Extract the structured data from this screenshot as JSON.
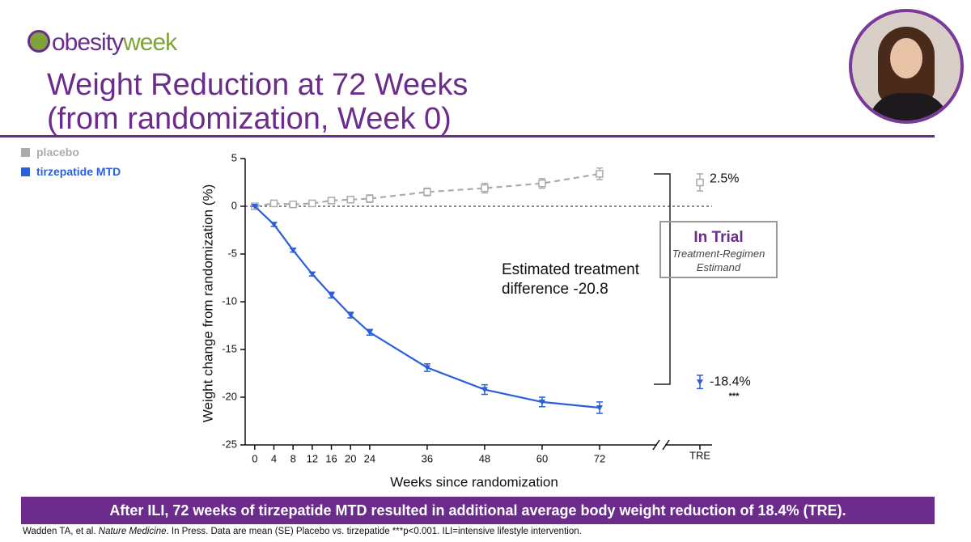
{
  "header": {
    "logo": [
      "obesity",
      "week"
    ],
    "title": [
      "Weight Reduction at 72 Weeks",
      "(from randomization, Week 0)"
    ]
  },
  "chart_data": {
    "type": "line",
    "x_label": "Weeks since randomization",
    "y_label": "Weight change from randomization (%)",
    "x": [
      0,
      4,
      8,
      12,
      16,
      20,
      24,
      36,
      48,
      60,
      72
    ],
    "xlim": [
      -2,
      84
    ],
    "xticks": [
      0,
      4,
      8,
      12,
      16,
      20,
      24,
      36,
      48,
      60,
      72
    ],
    "ylim": [
      -25,
      5
    ],
    "yticks": [
      -25,
      -20,
      -15,
      -10,
      -5,
      0,
      5
    ],
    "grid": false,
    "tre_category": "TRE",
    "series": [
      {
        "name": "placebo",
        "color": "#ababab",
        "line_style": "dashed",
        "marker": "square",
        "values": [
          0,
          0.3,
          0.2,
          0.3,
          0.6,
          0.7,
          0.8,
          1.5,
          1.9,
          2.4,
          3.4
        ],
        "errors": [
          0,
          0.3,
          0.3,
          0.3,
          0.3,
          0.3,
          0.4,
          0.4,
          0.5,
          0.5,
          0.6
        ],
        "tre_value": 2.5,
        "tre_error": 0.9,
        "tre_value_label": "2.5%"
      },
      {
        "name": "tirzepatide MTD",
        "color": "#2b5fd9",
        "line_style": "solid",
        "marker": "triangle",
        "values": [
          0,
          -1.9,
          -4.6,
          -7.1,
          -9.3,
          -11.4,
          -13.2,
          -16.9,
          -19.2,
          -20.5,
          -21.1
        ],
        "errors": [
          0,
          0.2,
          0.2,
          0.2,
          0.3,
          0.3,
          0.3,
          0.4,
          0.5,
          0.5,
          0.6
        ],
        "tre_value": -18.4,
        "tre_error": 0.7,
        "tre_value_label": "-18.4%",
        "significance": "***"
      }
    ],
    "annotation": "Estimated treatment difference -20.8",
    "estimand_box": {
      "title": "In Trial",
      "subtitle": "Treatment-Regimen Estimand"
    }
  },
  "banner": "After ILI, 72 weeks of tirzepatide MTD resulted in additional average body weight reduction of 18.4% (TRE).",
  "footnote": [
    "Wadden TA, et al. ",
    "Nature Medicine",
    ". In Press. Data are mean (SE) Placebo vs. tirzepatide ***p<0.001. ILI=intensive lifestyle intervention."
  ]
}
